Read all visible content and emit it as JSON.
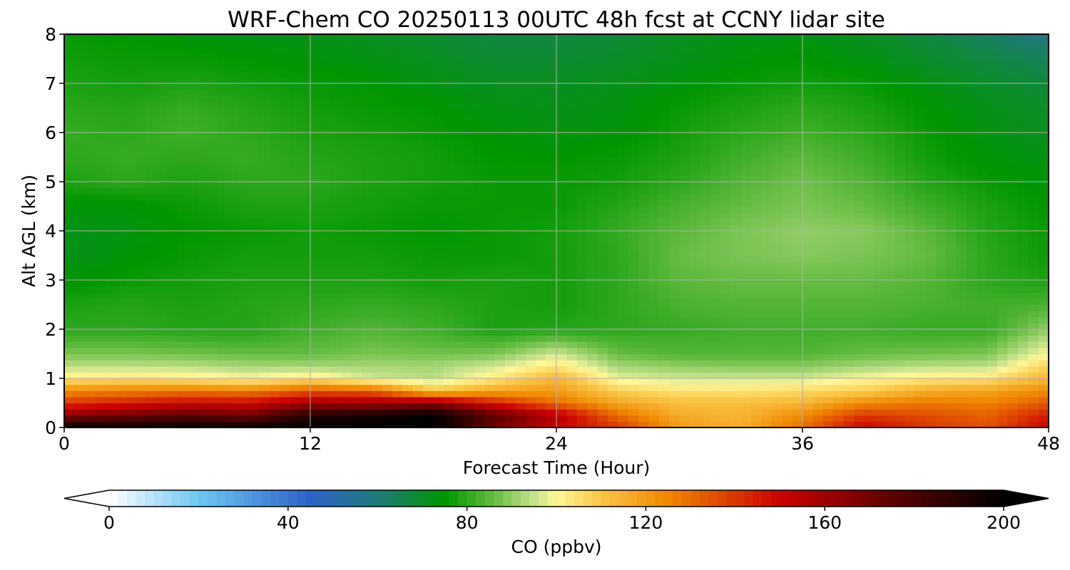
{
  "chart_data": {
    "type": "heatmap",
    "title": "WRF-Chem CO  20250113 00UTC 48h fcst at CCNY lidar site",
    "xlabel": "Forecast Time (Hour)",
    "ylabel": "Alt AGL (km)",
    "xlim": [
      0,
      48
    ],
    "ylim": [
      0,
      8
    ],
    "xticks": [
      0,
      12,
      24,
      36,
      48
    ],
    "yticks": [
      0,
      1,
      2,
      3,
      4,
      5,
      6,
      7,
      8
    ],
    "grid": true,
    "x": [
      0,
      3,
      6,
      9,
      12,
      15,
      18,
      21,
      24,
      27,
      30,
      33,
      36,
      39,
      42,
      45,
      48
    ],
    "y": [
      0,
      0.25,
      0.5,
      0.75,
      1.0,
      1.25,
      1.5,
      2,
      2.5,
      3,
      3.5,
      4,
      4.5,
      5,
      5.5,
      6,
      6.5,
      7,
      7.5,
      8
    ],
    "z": [
      [
        200,
        200,
        200,
        200,
        200,
        200,
        200,
        170,
        150,
        140,
        120,
        116,
        130,
        150,
        140,
        135,
        150
      ],
      [
        165,
        170,
        175,
        170,
        190,
        195,
        200,
        175,
        155,
        130,
        116,
        114,
        124,
        140,
        136,
        132,
        145
      ],
      [
        140,
        145,
        150,
        150,
        160,
        160,
        165,
        145,
        130,
        118,
        112,
        112,
        114,
        124,
        128,
        126,
        134
      ],
      [
        124,
        126,
        128,
        126,
        134,
        132,
        110,
        118,
        120,
        108,
        104,
        104,
        106,
        108,
        116,
        118,
        124
      ],
      [
        103,
        104,
        103,
        100,
        104,
        96,
        94,
        103,
        114,
        98,
        96,
        96,
        96,
        100,
        103,
        104,
        114
      ],
      [
        94,
        94,
        94,
        92,
        92,
        92,
        92,
        96,
        104,
        92,
        90,
        89,
        89,
        92,
        94,
        94,
        108
      ],
      [
        88,
        88,
        87,
        86,
        86,
        88,
        87,
        88,
        96,
        86,
        84,
        84,
        84,
        86,
        87,
        88,
        100
      ],
      [
        80,
        80,
        79,
        79,
        82,
        84,
        82,
        78,
        79,
        80,
        81,
        82,
        82,
        82,
        81,
        81,
        90
      ],
      [
        78,
        79,
        78,
        79,
        80,
        81,
        80,
        78,
        77,
        80,
        83,
        84,
        84,
        84,
        83,
        82,
        83
      ],
      [
        74,
        76,
        77,
        78,
        78,
        78,
        77,
        78,
        77,
        80,
        85,
        86,
        86,
        86,
        84,
        80,
        78
      ],
      [
        72,
        74,
        76,
        77,
        77,
        77,
        76,
        76,
        77,
        80,
        86,
        88,
        89,
        88,
        86,
        80,
        76
      ],
      [
        72,
        73,
        75,
        76,
        77,
        76,
        75,
        76,
        77,
        81,
        85,
        88,
        90,
        89,
        85,
        79,
        76
      ],
      [
        74,
        74,
        76,
        78,
        78,
        77,
        76,
        76,
        76,
        79,
        83,
        86,
        88,
        86,
        82,
        78,
        75
      ],
      [
        78,
        80,
        78,
        80,
        80,
        78,
        77,
        76,
        76,
        77,
        80,
        84,
        87,
        84,
        79,
        76,
        74
      ],
      [
        80,
        81,
        80,
        81,
        79,
        78,
        77,
        75,
        75,
        76,
        78,
        82,
        85,
        82,
        77,
        74,
        73
      ],
      [
        81,
        80,
        82,
        80,
        78,
        77,
        76,
        74,
        73,
        74,
        77,
        80,
        82,
        80,
        76,
        73,
        71
      ],
      [
        80,
        79,
        81,
        79,
        77,
        76,
        75,
        73,
        72,
        73,
        76,
        78,
        80,
        78,
        75,
        72,
        70
      ],
      [
        78,
        77,
        78,
        77,
        76,
        75,
        73,
        71,
        71,
        72,
        74,
        76,
        77,
        76,
        73,
        70,
        68
      ],
      [
        77,
        76,
        76,
        75,
        74,
        73,
        71,
        69,
        69,
        70,
        72,
        74,
        75,
        73,
        70,
        67,
        64
      ],
      [
        76,
        75,
        74,
        73,
        72,
        71,
        69,
        67,
        67,
        68,
        71,
        73,
        73,
        71,
        67,
        63,
        58
      ]
    ],
    "colorbar": {
      "label": "CO  (ppbv)",
      "min": 0,
      "max": 200,
      "ticks": [
        0,
        40,
        80,
        120,
        160,
        200
      ],
      "extend": "both",
      "stops": [
        {
          "value": 0,
          "color": "#ffffff"
        },
        {
          "value": 20,
          "color": "#6ec6f2"
        },
        {
          "value": 45,
          "color": "#2d62c8"
        },
        {
          "value": 60,
          "color": "#1f7a7a"
        },
        {
          "value": 75,
          "color": "#009600"
        },
        {
          "value": 85,
          "color": "#5cb83c"
        },
        {
          "value": 95,
          "color": "#c6e28c"
        },
        {
          "value": 100,
          "color": "#fff799"
        },
        {
          "value": 110,
          "color": "#f9c646"
        },
        {
          "value": 125,
          "color": "#f08700"
        },
        {
          "value": 150,
          "color": "#cc0000"
        },
        {
          "value": 175,
          "color": "#5c0000"
        },
        {
          "value": 200,
          "color": "#000000"
        }
      ]
    }
  }
}
